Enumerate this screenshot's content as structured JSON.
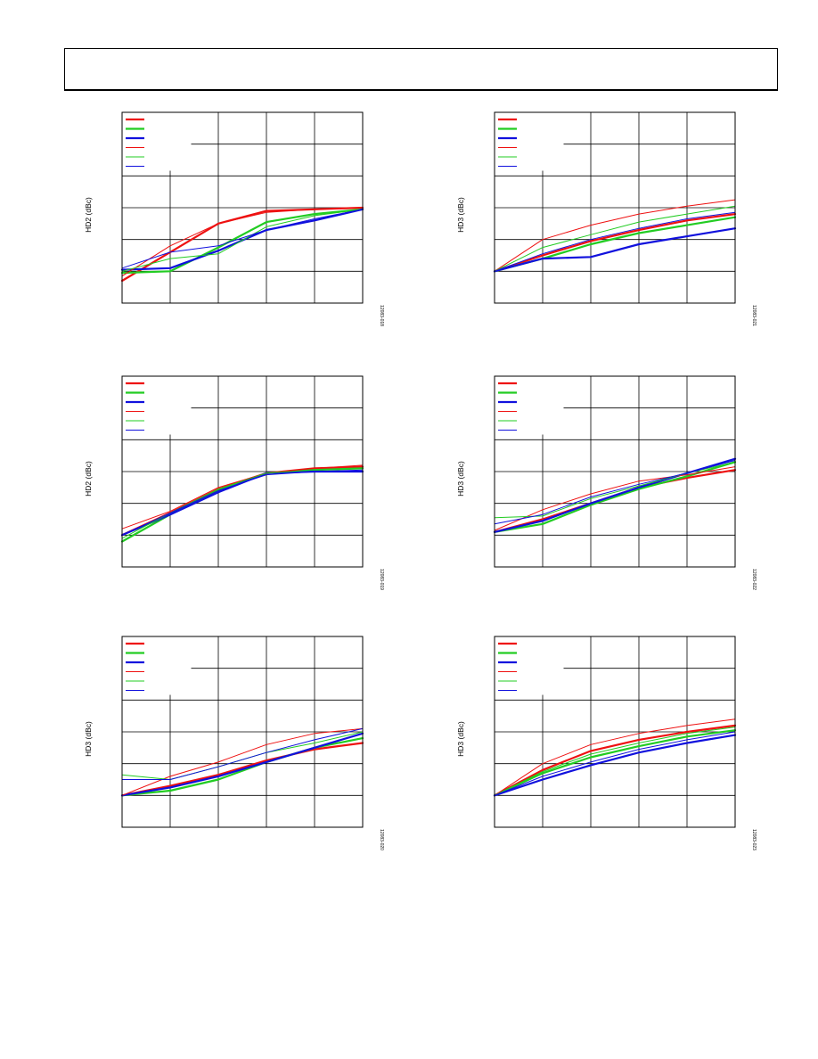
{
  "page": {
    "header_box": true
  },
  "chart_data": [
    {
      "type": "line",
      "ylabel": "HD2 (dBc)",
      "figure_id": "12083-018",
      "x": [
        0,
        1,
        2,
        3,
        4,
        5
      ],
      "ylim": [
        0,
        6
      ],
      "grid": true,
      "legend": "top-left",
      "series": [
        {
          "color": "#ee1111",
          "width": 2.2,
          "values": [
            0.7,
            1.6,
            2.5,
            2.9,
            2.95,
            3.0
          ]
        },
        {
          "color": "#22cc22",
          "width": 2.2,
          "values": [
            0.95,
            1.0,
            1.75,
            2.55,
            2.8,
            2.95
          ]
        },
        {
          "color": "#1111dd",
          "width": 2.2,
          "values": [
            1.05,
            1.1,
            1.65,
            2.3,
            2.6,
            2.95
          ]
        },
        {
          "color": "#ee1111",
          "width": 1.0,
          "values": [
            0.85,
            1.8,
            2.5,
            2.85,
            2.95,
            3.0
          ]
        },
        {
          "color": "#22cc22",
          "width": 1.0,
          "values": [
            1.0,
            1.4,
            1.55,
            2.4,
            2.75,
            2.95
          ]
        },
        {
          "color": "#1111dd",
          "width": 1.0,
          "values": [
            1.1,
            1.6,
            1.8,
            2.3,
            2.65,
            2.95
          ]
        }
      ]
    },
    {
      "type": "line",
      "ylabel": "HD3 (dBc)",
      "figure_id": "12083-021",
      "x": [
        0,
        1,
        2,
        3,
        4,
        5
      ],
      "ylim": [
        0,
        6
      ],
      "grid": true,
      "legend": "top-left",
      "series": [
        {
          "color": "#ee1111",
          "width": 2.2,
          "values": [
            1.0,
            1.5,
            1.95,
            2.3,
            2.6,
            2.8
          ]
        },
        {
          "color": "#22cc22",
          "width": 2.2,
          "values": [
            1.0,
            1.4,
            1.85,
            2.2,
            2.45,
            2.7
          ]
        },
        {
          "color": "#1111dd",
          "width": 2.2,
          "values": [
            1.0,
            1.4,
            1.45,
            1.85,
            2.1,
            2.35
          ]
        },
        {
          "color": "#ee1111",
          "width": 1.0,
          "values": [
            1.0,
            2.0,
            2.45,
            2.8,
            3.05,
            3.25
          ]
        },
        {
          "color": "#22cc22",
          "width": 1.0,
          "values": [
            1.0,
            1.75,
            2.15,
            2.55,
            2.8,
            3.05
          ]
        },
        {
          "color": "#1111dd",
          "width": 1.0,
          "values": [
            1.0,
            1.55,
            2.0,
            2.35,
            2.65,
            2.85
          ]
        }
      ]
    },
    {
      "type": "line",
      "ylabel": "HD2 (dBc)",
      "figure_id": "12083-019",
      "x": [
        0,
        1,
        2,
        3,
        4,
        5
      ],
      "ylim": [
        0,
        6
      ],
      "grid": true,
      "legend": "top-left",
      "series": [
        {
          "color": "#ee1111",
          "width": 2.2,
          "values": [
            1.0,
            1.7,
            2.45,
            2.95,
            3.1,
            3.15
          ]
        },
        {
          "color": "#22cc22",
          "width": 2.2,
          "values": [
            0.8,
            1.65,
            2.4,
            2.95,
            3.05,
            3.1
          ]
        },
        {
          "color": "#1111dd",
          "width": 2.2,
          "values": [
            1.0,
            1.65,
            2.35,
            2.95,
            3.0,
            3.0
          ]
        },
        {
          "color": "#ee1111",
          "width": 1.0,
          "values": [
            1.2,
            1.75,
            2.5,
            2.95,
            3.1,
            3.2
          ]
        },
        {
          "color": "#22cc22",
          "width": 1.0,
          "values": [
            0.9,
            1.7,
            2.45,
            2.95,
            3.05,
            3.1
          ]
        },
        {
          "color": "#1111dd",
          "width": 1.0,
          "values": [
            1.0,
            1.7,
            2.4,
            2.9,
            3.0,
            3.05
          ]
        }
      ]
    },
    {
      "type": "line",
      "ylabel": "HD3 (dBc)",
      "figure_id": "12083-022",
      "x": [
        0,
        1,
        2,
        3,
        4,
        5
      ],
      "ylim": [
        0,
        6
      ],
      "grid": true,
      "legend": "top-left",
      "series": [
        {
          "color": "#ee1111",
          "width": 2.2,
          "values": [
            1.1,
            1.5,
            2.0,
            2.5,
            2.8,
            3.05
          ]
        },
        {
          "color": "#22cc22",
          "width": 2.2,
          "values": [
            1.1,
            1.35,
            1.95,
            2.45,
            2.85,
            3.3
          ]
        },
        {
          "color": "#1111dd",
          "width": 2.2,
          "values": [
            1.1,
            1.45,
            2.0,
            2.5,
            2.95,
            3.4
          ]
        },
        {
          "color": "#ee1111",
          "width": 1.0,
          "values": [
            1.15,
            1.8,
            2.3,
            2.7,
            2.9,
            3.15
          ]
        },
        {
          "color": "#22cc22",
          "width": 1.0,
          "values": [
            1.55,
            1.6,
            2.15,
            2.55,
            2.95,
            3.3
          ]
        },
        {
          "color": "#1111dd",
          "width": 1.0,
          "values": [
            1.35,
            1.65,
            2.2,
            2.6,
            2.95,
            3.35
          ]
        }
      ]
    },
    {
      "type": "line",
      "ylabel": "HD3 (dBc)",
      "figure_id": "12083-020",
      "x": [
        0,
        1,
        2,
        3,
        4,
        5
      ],
      "ylim": [
        0,
        6
      ],
      "grid": true,
      "legend": "top-left",
      "series": [
        {
          "color": "#ee1111",
          "width": 2.2,
          "values": [
            1.0,
            1.3,
            1.65,
            2.1,
            2.45,
            2.65
          ]
        },
        {
          "color": "#22cc22",
          "width": 2.2,
          "values": [
            1.0,
            1.15,
            1.5,
            2.05,
            2.5,
            2.8
          ]
        },
        {
          "color": "#1111dd",
          "width": 2.2,
          "values": [
            1.0,
            1.25,
            1.6,
            2.05,
            2.5,
            2.95
          ]
        },
        {
          "color": "#ee1111",
          "width": 1.0,
          "values": [
            1.0,
            1.6,
            2.05,
            2.6,
            2.95,
            3.1
          ]
        },
        {
          "color": "#22cc22",
          "width": 1.0,
          "values": [
            1.65,
            1.5,
            1.9,
            2.35,
            2.65,
            3.0
          ]
        },
        {
          "color": "#1111dd",
          "width": 1.0,
          "values": [
            1.5,
            1.5,
            1.9,
            2.35,
            2.75,
            3.1
          ]
        }
      ]
    },
    {
      "type": "line",
      "ylabel": "HD3 (dBc)",
      "figure_id": "12083-023",
      "x": [
        0,
        1,
        2,
        3,
        4,
        5
      ],
      "ylim": [
        0,
        6
      ],
      "grid": true,
      "legend": "top-left",
      "series": [
        {
          "color": "#ee1111",
          "width": 2.2,
          "values": [
            1.0,
            1.8,
            2.4,
            2.75,
            3.0,
            3.2
          ]
        },
        {
          "color": "#22cc22",
          "width": 2.2,
          "values": [
            1.0,
            1.7,
            2.2,
            2.55,
            2.85,
            3.05
          ]
        },
        {
          "color": "#1111dd",
          "width": 2.2,
          "values": [
            1.0,
            1.5,
            1.95,
            2.35,
            2.65,
            2.9
          ]
        },
        {
          "color": "#ee1111",
          "width": 1.0,
          "values": [
            1.0,
            2.0,
            2.6,
            2.95,
            3.2,
            3.4
          ]
        },
        {
          "color": "#22cc22",
          "width": 1.0,
          "values": [
            1.0,
            1.75,
            2.3,
            2.65,
            2.95,
            3.15
          ]
        },
        {
          "color": "#1111dd",
          "width": 1.0,
          "values": [
            1.0,
            1.6,
            2.05,
            2.45,
            2.75,
            3.0
          ]
        }
      ]
    }
  ]
}
